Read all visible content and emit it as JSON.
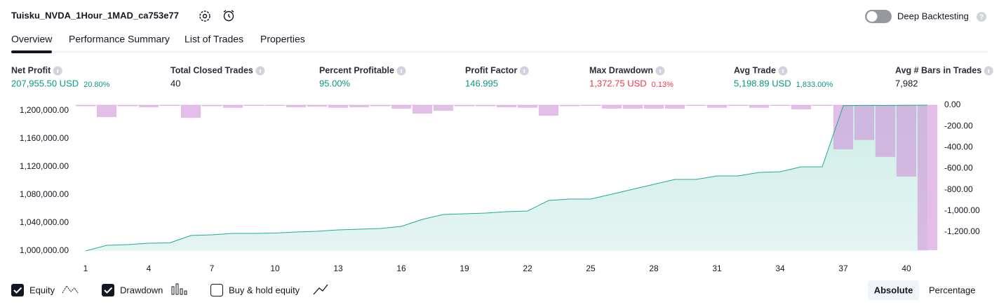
{
  "header": {
    "title": "Tuisku_NVDA_1Hour_1MAD_ca753e77",
    "deep_backtesting": "Deep Backtesting"
  },
  "tabs": [
    "Overview",
    "Performance Summary",
    "List of Trades",
    "Properties"
  ],
  "metrics": [
    {
      "label": "Net Profit",
      "value": "207,955.50 USD",
      "sub": "20.80%",
      "color": "#089981"
    },
    {
      "label": "Total Closed Trades",
      "value": "40",
      "color": "#131722"
    },
    {
      "label": "Percent Profitable",
      "value": "95.00%",
      "color": "#089981"
    },
    {
      "label": "Profit Factor",
      "value": "146.995",
      "color": "#089981"
    },
    {
      "label": "Max Drawdown",
      "value": "1,372.75 USD",
      "sub": "0.13%",
      "color": "#f23645"
    },
    {
      "label": "Avg Trade",
      "value": "5,198.89 USD",
      "sub": "1,833.00%",
      "color": "#089981"
    },
    {
      "label": "Avg # Bars in Trades",
      "value": "7,982",
      "color": "#131722"
    }
  ],
  "chart_data": {
    "type": "line",
    "x": [
      1,
      2,
      3,
      4,
      5,
      6,
      7,
      8,
      9,
      10,
      11,
      12,
      13,
      14,
      15,
      16,
      17,
      18,
      19,
      20,
      21,
      22,
      23,
      24,
      25,
      26,
      27,
      28,
      29,
      30,
      31,
      32,
      33,
      34,
      35,
      36,
      37,
      38,
      39,
      40,
      41
    ],
    "series": [
      {
        "name": "Equity",
        "type": "area",
        "color": "#22ab94",
        "values": [
          1000000,
          1008000,
          1009000,
          1011000,
          1011500,
          1022000,
          1023000,
          1025000,
          1025000,
          1025500,
          1027000,
          1028000,
          1030000,
          1031000,
          1032000,
          1035000,
          1045000,
          1052000,
          1053000,
          1054000,
          1056000,
          1057000,
          1072000,
          1074000,
          1074000,
          1081000,
          1088000,
          1095000,
          1102000,
          1102000,
          1107000,
          1107000,
          1112000,
          1113000,
          1120000,
          1120000,
          1207200,
          1207600,
          1207500,
          1207800,
          1207955.5
        ]
      },
      {
        "name": "Drawdown",
        "type": "bar",
        "axis": "y2",
        "color": "#ce93d8",
        "values": [
          -10,
          -113,
          -10,
          -20,
          -5,
          -120,
          -10,
          -25,
          -5,
          -5,
          -20,
          -15,
          -25,
          -20,
          -10,
          -33,
          -80,
          -53,
          -10,
          -10,
          -20,
          -25,
          -100,
          -10,
          -5,
          -33,
          -33,
          -33,
          -33,
          -5,
          -25,
          -5,
          -25,
          -5,
          -40,
          -5,
          -418,
          -330,
          -490,
          -676,
          -1372.75
        ]
      }
    ],
    "legend_extra": "Buy & hold equity",
    "xlim": [
      0.5,
      41.5
    ],
    "xticks": [
      1,
      4,
      7,
      10,
      13,
      16,
      19,
      22,
      25,
      28,
      31,
      34,
      37,
      40
    ],
    "ylim": [
      1000000,
      1208000
    ],
    "yticks": [
      {
        "value": 1000000,
        "label": "1,000,000.00"
      },
      {
        "value": 1040000,
        "label": "1,040,000.00"
      },
      {
        "value": 1080000,
        "label": "1,080,000.00"
      },
      {
        "value": 1120000,
        "label": "1,120,000.00"
      },
      {
        "value": 1160000,
        "label": "1,160,000.00"
      },
      {
        "value": 1200000,
        "label": "1,200,000.00"
      }
    ],
    "y2lim": [
      -1380,
      0
    ],
    "y2ticks": [
      {
        "value": 0,
        "label": "0.00"
      },
      {
        "value": -200,
        "label": "-200.00"
      },
      {
        "value": -400,
        "label": "-400.00"
      },
      {
        "value": -600,
        "label": "-600.00"
      },
      {
        "value": -800,
        "label": "-800.00"
      },
      {
        "value": -1000,
        "label": "-1,000.00"
      },
      {
        "value": -1200,
        "label": "-1,200.00"
      }
    ],
    "grid": false
  },
  "modes": [
    "Absolute",
    "Percentage"
  ]
}
